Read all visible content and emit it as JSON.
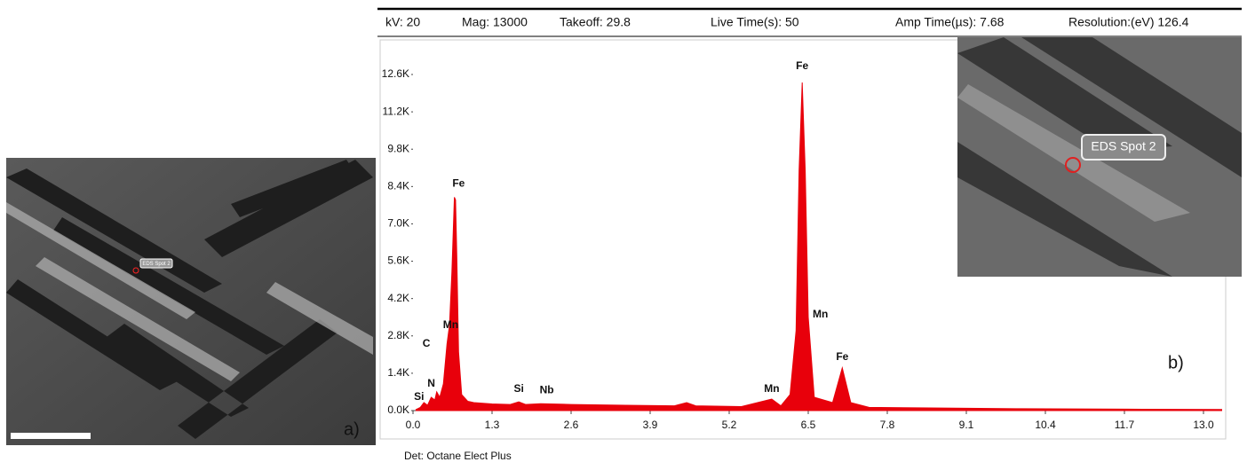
{
  "header": [
    "kV: 20",
    "Mag: 13000",
    "Takeoff: 29.8",
    "Live Time(s): 50",
    "Amp Time(µs): 7.68",
    "Resolution:(eV) 126.4"
  ],
  "detector": "Det: Octane Elect Plus",
  "panels": {
    "a": {
      "label": "a)",
      "spot_label": "EDS Spot 2"
    },
    "b": {
      "label": "b)",
      "spot_label": "EDS Spot 2"
    }
  },
  "chart_data": {
    "type": "area",
    "color": "#e8000b",
    "x": [
      0.05,
      0.12,
      0.18,
      0.24,
      0.3,
      0.36,
      0.39,
      0.44,
      0.5,
      0.56,
      0.6,
      0.64,
      0.68,
      0.7,
      0.72,
      0.75,
      0.8,
      0.9,
      1.0,
      1.3,
      1.6,
      1.74,
      1.85,
      2.1,
      2.6,
      3.5,
      4.3,
      4.5,
      4.65,
      5.4,
      5.9,
      6.05,
      6.2,
      6.3,
      6.35,
      6.4,
      6.45,
      6.5,
      6.6,
      6.9,
      7.06,
      7.2,
      7.5,
      8.5,
      10.0,
      12.0,
      13.3
    ],
    "values": [
      40,
      120,
      300,
      200,
      500,
      400,
      700,
      500,
      1000,
      2500,
      3200,
      5200,
      8000,
      7900,
      5800,
      2200,
      600,
      350,
      300,
      250,
      230,
      330,
      230,
      260,
      230,
      200,
      180,
      300,
      180,
      150,
      430,
      180,
      600,
      3000,
      9000,
      12300,
      9000,
      3500,
      500,
      300,
      1600,
      300,
      120,
      100,
      70,
      50,
      40
    ],
    "xlim": [
      0,
      13.3
    ],
    "ylim": [
      0,
      13700
    ],
    "xticks": [
      {
        "value": 0,
        "label": "0.0"
      },
      1.3,
      2.6,
      3.9,
      5.2,
      6.5,
      7.8,
      9.1,
      10.4,
      11.7,
      {
        "value": 13,
        "label": "13.0"
      }
    ],
    "yticks": [
      {
        "value": 0,
        "label": "0.0K"
      },
      {
        "value": 1400,
        "label": "1.4K"
      },
      {
        "value": 2800,
        "label": "2.8K"
      },
      {
        "value": 4200,
        "label": "4.2K"
      },
      {
        "value": 5600,
        "label": "5.6K"
      },
      {
        "value": 7000,
        "label": "7.0K"
      },
      {
        "value": 8400,
        "label": "8.4K"
      },
      {
        "value": 9800,
        "label": "9.8K"
      },
      {
        "value": 11200,
        "label": "11.2K"
      },
      {
        "value": 12600,
        "label": "12.6K"
      }
    ],
    "annotations": [
      {
        "text": "Si",
        "x": 0.1,
        "y": 500
      },
      {
        "text": "N",
        "x": 0.3,
        "y": 1000
      },
      {
        "text": "C",
        "x": 0.22,
        "y": 2500
      },
      {
        "text": "Mn",
        "x": 0.62,
        "y": 3200
      },
      {
        "text": "Fe",
        "x": 0.75,
        "y": 8500
      },
      {
        "text": "Si",
        "x": 1.74,
        "y": 800
      },
      {
        "text": "Nb",
        "x": 2.2,
        "y": 750
      },
      {
        "text": "Mn",
        "x": 5.9,
        "y": 800
      },
      {
        "text": "Fe",
        "x": 6.4,
        "y": 12900
      },
      {
        "text": "Mn",
        "x": 6.7,
        "y": 3600
      },
      {
        "text": "Fe",
        "x": 7.06,
        "y": 2000
      }
    ]
  }
}
